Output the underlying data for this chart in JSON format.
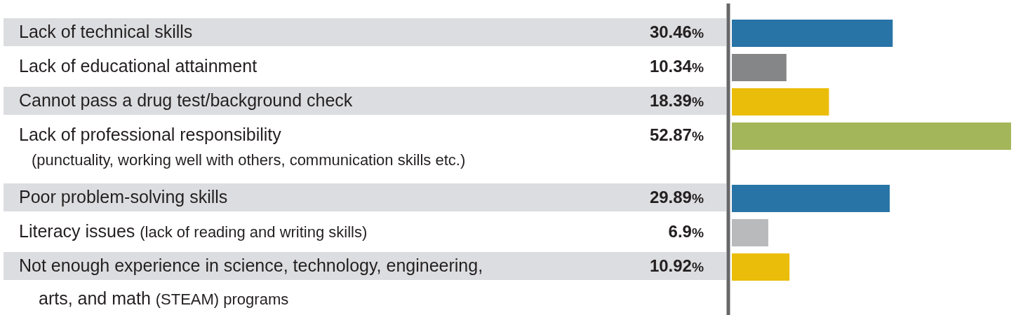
{
  "chart_data": {
    "type": "bar",
    "orientation": "horizontal",
    "categories": [
      "Lack of technical skills",
      "Lack of educational attainment",
      "Cannot pass a drug test/background check",
      "Lack of professional responsibility\n(punctuality, working well with others, communication skills etc.)",
      "Poor problem-solving skills",
      "Literacy issues (lack of reading and writing skills)",
      "Not enough experience in science, technology, engineering,\narts, and math (STEAM) programs"
    ],
    "values": [
      30.46,
      10.34,
      18.39,
      52.87,
      29.89,
      6.9,
      10.92
    ],
    "colors": [
      "#2874a6",
      "#858688",
      "#ebbd0b",
      "#a3b65a",
      "#2874a6",
      "#b9babb",
      "#ebbd0b"
    ],
    "value_labels": [
      "30.46%",
      "10.34%",
      "18.39%",
      "52.87%",
      "29.89%",
      "6.9%",
      "10.92%"
    ]
  }
}
